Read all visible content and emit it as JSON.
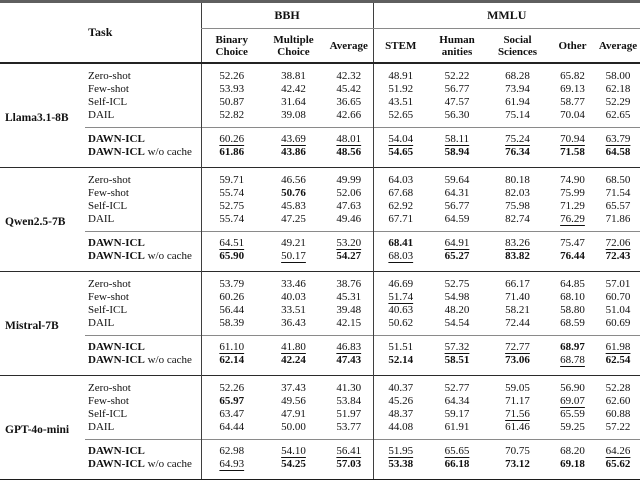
{
  "table": {
    "task_header": "Task",
    "groups": [
      {
        "label": "BBH",
        "span": 3
      },
      {
        "label": "MMLU",
        "span": 5
      }
    ],
    "columns": [
      {
        "lines": [
          "Binary",
          "Choice"
        ]
      },
      {
        "lines": [
          "Multiple",
          "Choice"
        ]
      },
      {
        "lines": [
          "Average"
        ]
      },
      {
        "lines": [
          "STEM"
        ]
      },
      {
        "lines": [
          "Human",
          "anities"
        ]
      },
      {
        "lines": [
          "Social",
          "Sciences"
        ]
      },
      {
        "lines": [
          "Other"
        ]
      },
      {
        "lines": [
          "Average"
        ]
      }
    ],
    "style_legend": {
      "b": "bold (best result)",
      "u": "underline (second best)",
      "": "plain"
    },
    "blocks": [
      {
        "model": "Llama3.1-8B",
        "rows": [
          {
            "method": "Zero-shot",
            "method_bold": false,
            "suffix": "",
            "values": [
              "52.26",
              "38.81",
              "42.32",
              "48.91",
              "52.22",
              "68.28",
              "65.82",
              "58.00"
            ],
            "styles": [
              "",
              "",
              "",
              "",
              "",
              "",
              "",
              ""
            ]
          },
          {
            "method": "Few-shot",
            "method_bold": false,
            "suffix": "",
            "values": [
              "53.93",
              "42.42",
              "45.42",
              "51.92",
              "56.77",
              "73.94",
              "69.13",
              "62.18"
            ],
            "styles": [
              "",
              "",
              "",
              "",
              "",
              "",
              "",
              ""
            ]
          },
          {
            "method": "Self-ICL",
            "method_bold": false,
            "suffix": "",
            "values": [
              "50.87",
              "31.64",
              "36.65",
              "43.51",
              "47.57",
              "61.94",
              "58.77",
              "52.29"
            ],
            "styles": [
              "",
              "",
              "",
              "",
              "",
              "",
              "",
              ""
            ]
          },
          {
            "method": "DAIL",
            "method_bold": false,
            "suffix": "",
            "values": [
              "52.82",
              "39.08",
              "42.66",
              "52.65",
              "56.30",
              "75.14",
              "70.04",
              "62.65"
            ],
            "styles": [
              "",
              "",
              "",
              "",
              "",
              "",
              "",
              ""
            ]
          },
          {
            "method": "DAWN-ICL",
            "method_bold": true,
            "suffix": "",
            "values": [
              "60.26",
              "43.69",
              "48.01",
              "54.04",
              "58.11",
              "75.24",
              "70.94",
              "63.79"
            ],
            "styles": [
              "u",
              "u",
              "u",
              "u",
              "u",
              "u",
              "u",
              "u"
            ]
          },
          {
            "method": "DAWN-ICL",
            "method_bold": true,
            "suffix": " w/o cache",
            "values": [
              "61.86",
              "43.86",
              "48.56",
              "54.65",
              "58.94",
              "76.34",
              "71.58",
              "64.58"
            ],
            "styles": [
              "b",
              "b",
              "b",
              "b",
              "b",
              "b",
              "b",
              "b"
            ]
          }
        ]
      },
      {
        "model": "Qwen2.5-7B",
        "rows": [
          {
            "method": "Zero-shot",
            "method_bold": false,
            "suffix": "",
            "values": [
              "59.71",
              "46.56",
              "49.99",
              "64.03",
              "59.64",
              "80.18",
              "74.90",
              "68.50"
            ],
            "styles": [
              "",
              "",
              "",
              "",
              "",
              "",
              "",
              ""
            ]
          },
          {
            "method": "Few-shot",
            "method_bold": false,
            "suffix": "",
            "values": [
              "55.74",
              "50.76",
              "52.06",
              "67.68",
              "64.31",
              "82.03",
              "75.99",
              "71.54"
            ],
            "styles": [
              "",
              "b",
              "",
              "",
              "",
              "",
              "",
              ""
            ]
          },
          {
            "method": "Self-ICL",
            "method_bold": false,
            "suffix": "",
            "values": [
              "52.75",
              "45.83",
              "47.63",
              "62.92",
              "56.77",
              "75.98",
              "71.29",
              "65.57"
            ],
            "styles": [
              "",
              "",
              "",
              "",
              "",
              "",
              "",
              ""
            ]
          },
          {
            "method": "DAIL",
            "method_bold": false,
            "suffix": "",
            "values": [
              "55.74",
              "47.25",
              "49.46",
              "67.71",
              "64.59",
              "82.74",
              "76.29",
              "71.86"
            ],
            "styles": [
              "",
              "",
              "",
              "",
              "",
              "",
              "u",
              ""
            ]
          },
          {
            "method": "DAWN-ICL",
            "method_bold": true,
            "suffix": "",
            "values": [
              "64.51",
              "49.21",
              "53.20",
              "68.41",
              "64.91",
              "83.26",
              "75.47",
              "72.06"
            ],
            "styles": [
              "u",
              "",
              "u",
              "b",
              "u",
              "u",
              "",
              "u"
            ]
          },
          {
            "method": "DAWN-ICL",
            "method_bold": true,
            "suffix": " w/o cache",
            "values": [
              "65.90",
              "50.17",
              "54.27",
              "68.03",
              "65.27",
              "83.82",
              "76.44",
              "72.43"
            ],
            "styles": [
              "b",
              "u",
              "b",
              "u",
              "b",
              "b",
              "b",
              "b"
            ]
          }
        ]
      },
      {
        "model": "Mistral-7B",
        "rows": [
          {
            "method": "Zero-shot",
            "method_bold": false,
            "suffix": "",
            "values": [
              "53.79",
              "33.46",
              "38.76",
              "46.69",
              "52.75",
              "66.17",
              "64.85",
              "57.01"
            ],
            "styles": [
              "",
              "",
              "",
              "",
              "",
              "",
              "",
              ""
            ]
          },
          {
            "method": "Few-shot",
            "method_bold": false,
            "suffix": "",
            "values": [
              "60.26",
              "40.03",
              "45.31",
              "51.74",
              "54.98",
              "71.40",
              "68.10",
              "60.70"
            ],
            "styles": [
              "",
              "",
              "",
              "u",
              "",
              "",
              "",
              ""
            ]
          },
          {
            "method": "Self-ICL",
            "method_bold": false,
            "suffix": "",
            "values": [
              "56.44",
              "33.51",
              "39.48",
              "40.63",
              "48.20",
              "58.21",
              "58.80",
              "51.04"
            ],
            "styles": [
              "",
              "",
              "",
              "",
              "",
              "",
              "",
              ""
            ]
          },
          {
            "method": "DAIL",
            "method_bold": false,
            "suffix": "",
            "values": [
              "58.39",
              "36.43",
              "42.15",
              "50.62",
              "54.54",
              "72.44",
              "68.59",
              "60.69"
            ],
            "styles": [
              "",
              "",
              "",
              "",
              "",
              "",
              "",
              ""
            ]
          },
          {
            "method": "DAWN-ICL",
            "method_bold": true,
            "suffix": "",
            "values": [
              "61.10",
              "41.80",
              "46.83",
              "51.51",
              "57.32",
              "72.77",
              "68.97",
              "61.98"
            ],
            "styles": [
              "u",
              "u",
              "u",
              "",
              "u",
              "u",
              "b",
              "u"
            ]
          },
          {
            "method": "DAWN-ICL",
            "method_bold": true,
            "suffix": " w/o cache",
            "values": [
              "62.14",
              "42.24",
              "47.43",
              "52.14",
              "58.51",
              "73.06",
              "68.78",
              "62.54"
            ],
            "styles": [
              "b",
              "b",
              "b",
              "b",
              "b",
              "b",
              "u",
              "b"
            ]
          }
        ]
      },
      {
        "model": "GPT-4o-mini",
        "rows": [
          {
            "method": "Zero-shot",
            "method_bold": false,
            "suffix": "",
            "values": [
              "52.26",
              "37.43",
              "41.30",
              "40.37",
              "52.77",
              "59.05",
              "56.90",
              "52.28"
            ],
            "styles": [
              "",
              "",
              "",
              "",
              "",
              "",
              "",
              ""
            ]
          },
          {
            "method": "Few-shot",
            "method_bold": false,
            "suffix": "",
            "values": [
              "65.97",
              "49.56",
              "53.84",
              "45.26",
              "64.34",
              "71.17",
              "69.07",
              "62.60"
            ],
            "styles": [
              "b",
              "",
              "",
              "",
              "",
              "",
              "u",
              ""
            ]
          },
          {
            "method": "Self-ICL",
            "method_bold": false,
            "suffix": "",
            "values": [
              "63.47",
              "47.91",
              "51.97",
              "48.37",
              "59.17",
              "71.56",
              "65.59",
              "60.88"
            ],
            "styles": [
              "",
              "",
              "",
              "",
              "",
              "u",
              "",
              ""
            ]
          },
          {
            "method": "DAIL",
            "method_bold": false,
            "suffix": "",
            "values": [
              "64.44",
              "50.00",
              "53.77",
              "44.08",
              "61.91",
              "61.46",
              "59.25",
              "57.22"
            ],
            "styles": [
              "",
              "",
              "",
              "",
              "",
              "",
              "",
              ""
            ]
          },
          {
            "method": "DAWN-ICL",
            "method_bold": true,
            "suffix": "",
            "values": [
              "62.98",
              "54.10",
              "56.41",
              "51.95",
              "65.65",
              "70.75",
              "68.20",
              "64.26"
            ],
            "styles": [
              "",
              "u",
              "u",
              "u",
              "u",
              "",
              "",
              "u"
            ]
          },
          {
            "method": "DAWN-ICL",
            "method_bold": true,
            "suffix": " w/o cache",
            "values": [
              "64.93",
              "54.25",
              "57.03",
              "53.38",
              "66.18",
              "73.12",
              "69.18",
              "65.62"
            ],
            "styles": [
              "u",
              "b",
              "b",
              "b",
              "b",
              "b",
              "b",
              "b"
            ]
          }
        ]
      }
    ]
  }
}
